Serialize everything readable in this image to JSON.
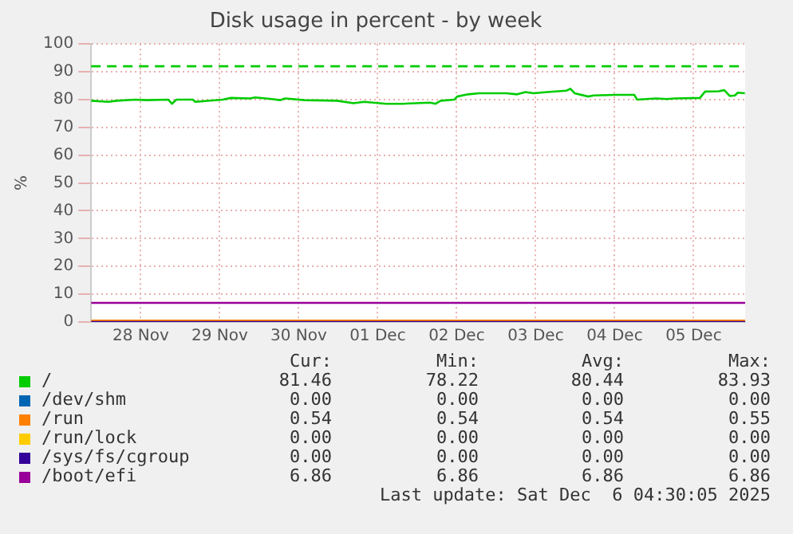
{
  "chart_data": {
    "type": "line",
    "title": "Disk usage in percent - by week",
    "ylabel": "%",
    "xlim": [
      "2025-11-27T20:55",
      "2025-12-06T03:40"
    ],
    "xticks": [
      {
        "value": "2025-11-28T12:00",
        "label": "28 Nov"
      },
      {
        "value": "2025-11-29T12:00",
        "label": "29 Nov"
      },
      {
        "value": "2025-11-30T12:00",
        "label": "30 Nov"
      },
      {
        "value": "2025-12-01T12:00",
        "label": "01 Dec"
      },
      {
        "value": "2025-12-02T12:00",
        "label": "02 Dec"
      },
      {
        "value": "2025-12-03T12:00",
        "label": "03 Dec"
      },
      {
        "value": "2025-12-04T12:00",
        "label": "04 Dec"
      },
      {
        "value": "2025-12-05T12:00",
        "label": "05 Dec"
      }
    ],
    "ylim": [
      0,
      100
    ],
    "yticks": [
      0,
      10,
      20,
      30,
      40,
      50,
      60,
      70,
      80,
      90,
      100
    ],
    "grid": true,
    "legend": "bottom",
    "series": [
      {
        "name": "/",
        "color": "#00cc00",
        "x": [
          "2025-11-27T20:55",
          "2025-11-28T02:10",
          "2025-11-28T04:40",
          "2025-11-28T10:25",
          "2025-11-28T13:45",
          "2025-11-28T20:20",
          "2025-11-28T21:30",
          "2025-11-28T22:50",
          "2025-11-29T03:50",
          "2025-11-29T04:35",
          "2025-11-29T12:55",
          "2025-11-29T15:25",
          "2025-11-29T21:10",
          "2025-11-29T22:50",
          "2025-11-30T03:50",
          "2025-11-30T06:20",
          "2025-11-30T07:55",
          "2025-11-30T13:45",
          "2025-11-30T23:40",
          "2025-12-01T04:40",
          "2025-12-01T07:55",
          "2025-12-01T14:35",
          "2025-12-01T19:35",
          "2025-12-02T03:55",
          "2025-12-02T05:35",
          "2025-12-02T07:10",
          "2025-12-02T11:20",
          "2025-12-02T12:10",
          "2025-12-02T15:30",
          "2025-12-02T18:50",
          "2025-12-03T03:05",
          "2025-12-03T06:25",
          "2025-12-03T08:55",
          "2025-12-03T11:25",
          "2025-12-03T15:30",
          "2025-12-03T21:20",
          "2025-12-03T22:35",
          "2025-12-03T23:50",
          "2025-12-04T04:00",
          "2025-12-04T05:35",
          "2025-12-04T12:10",
          "2025-12-04T18:00",
          "2025-12-04T18:50",
          "2025-12-05T00:35",
          "2025-12-05T03:55",
          "2025-12-05T06:25",
          "2025-12-05T13:55",
          "2025-12-05T15:30",
          "2025-12-05T19:40",
          "2025-12-05T21:20",
          "2025-12-05T23:00",
          "2025-12-06T00:35",
          "2025-12-06T01:25",
          "2025-12-06T03:35"
        ],
        "values": [
          79.6,
          79.2,
          79.6,
          80.0,
          79.8,
          80.0,
          78.5,
          80.0,
          80.0,
          79.2,
          80.0,
          80.6,
          80.4,
          80.8,
          80.2,
          79.8,
          80.4,
          79.8,
          79.6,
          78.7,
          79.2,
          78.5,
          78.5,
          78.9,
          78.5,
          79.6,
          80.0,
          81.1,
          81.9,
          82.3,
          82.3,
          81.9,
          82.7,
          82.3,
          82.7,
          83.2,
          83.9,
          82.3,
          81.1,
          81.5,
          81.7,
          81.7,
          80.0,
          80.4,
          80.2,
          80.4,
          80.6,
          82.9,
          83.0,
          83.4,
          81.3,
          81.5,
          82.5,
          82.3
        ]
      },
      {
        "name": "/dev/shm",
        "color": "#0066b3",
        "values": [
          null,
          null
        ]
      },
      {
        "name": "/run",
        "color": "#ff8000",
        "x": [
          "2025-11-27T20:55",
          "2025-12-06T03:40"
        ],
        "values": [
          0.5,
          0.5
        ]
      },
      {
        "name": "/run/lock",
        "color": "#ffcc00",
        "values": [
          null,
          null
        ]
      },
      {
        "name": "/sys/fs/cgroup",
        "color": "#330099",
        "x": [
          "2025-11-27T20:55",
          "2025-12-06T03:40"
        ],
        "values": [
          0,
          0
        ]
      },
      {
        "name": "/boot/efi",
        "color": "#990099",
        "x": [
          "2025-11-27T20:55",
          "2025-12-06T03:40"
        ],
        "values": [
          6.9,
          6.9
        ]
      }
    ],
    "ref_lines": [
      {
        "axis": "y",
        "value": 92,
        "color": "#00cc00",
        "line_style": "dashed"
      }
    ],
    "annotations": [
      "Cur:",
      "Min:",
      "Avg:",
      "Max:",
      "81.46",
      "78.22",
      "80.44",
      "83.93",
      "0.00",
      "0.00",
      "0.00",
      "0.00",
      "0.54",
      "0.54",
      "0.54",
      "0.55",
      "0.00",
      "0.00",
      "0.00",
      "0.00",
      "0.00",
      "0.00",
      "0.00",
      "0.00",
      "6.86",
      "6.86",
      "6.86",
      "6.86",
      "Last update: Sat Dec  6 04:30:05 2025"
    ]
  }
}
